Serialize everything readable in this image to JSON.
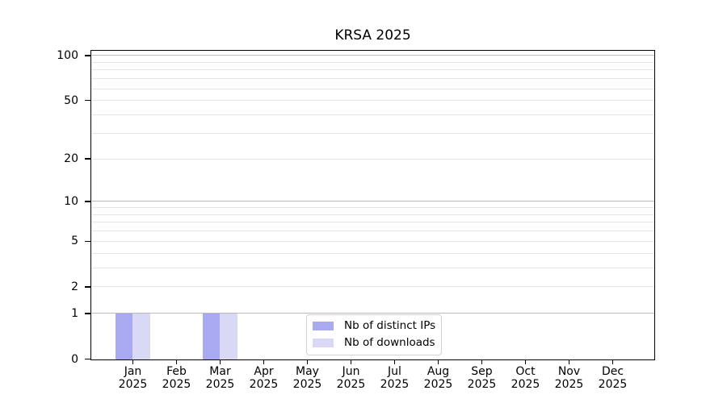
{
  "chart_data": {
    "type": "bar",
    "title": "KRSA 2025",
    "xlabel": "",
    "ylabel": "",
    "categories": [
      "Jan 2025",
      "Feb 2025",
      "Mar 2025",
      "Apr 2025",
      "May 2025",
      "Jun 2025",
      "Jul 2025",
      "Aug 2025",
      "Sep 2025",
      "Oct 2025",
      "Nov 2025",
      "Dec 2025"
    ],
    "series": [
      {
        "name": "Nb of distinct IPs",
        "color": "#a9a9f2",
        "values": [
          1,
          0,
          1,
          0,
          0,
          0,
          0,
          0,
          0,
          0,
          0,
          0
        ]
      },
      {
        "name": "Nb of downloads",
        "color": "#d9d9f6",
        "values": [
          1,
          0,
          1,
          0,
          0,
          0,
          0,
          0,
          0,
          0,
          0,
          0
        ]
      }
    ],
    "yscale": "log1p",
    "ylim": [
      0,
      107
    ],
    "yticks": [
      0,
      1,
      2,
      5,
      10,
      20,
      50,
      100
    ],
    "grid": {
      "major_at": [
        1,
        10,
        100
      ],
      "minor_at": [
        2,
        3,
        4,
        5,
        6,
        7,
        8,
        9,
        20,
        30,
        40,
        50,
        60,
        70,
        80,
        90
      ],
      "major_color": "#b9b9b9",
      "minor_color": "#e5e5e5"
    },
    "legend": {
      "position": "inside-bottom-center",
      "entries": [
        "Nb of distinct IPs",
        "Nb of downloads"
      ]
    },
    "colors": {
      "text": "#000000",
      "spine": "#000000",
      "background": "#ffffff"
    }
  }
}
